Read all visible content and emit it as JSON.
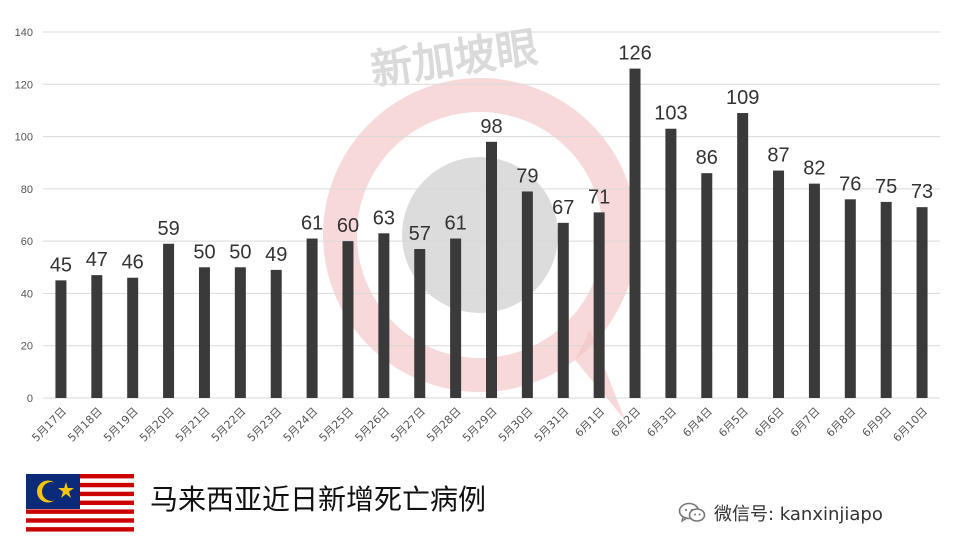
{
  "chart_data": {
    "type": "bar",
    "categories": [
      "5月17日",
      "5月18日",
      "5月19日",
      "5月20日",
      "5月21日",
      "5月22日",
      "5月23日",
      "5月24日",
      "5月25日",
      "5月26日",
      "5月27日",
      "5月28日",
      "5月29日",
      "5月30日",
      "5月31日",
      "6月1日",
      "6月2日",
      "6月3日",
      "6月4日",
      "6月5日",
      "6月6日",
      "6月7日",
      "6月8日",
      "6月9日",
      "6月10日"
    ],
    "values": [
      45,
      47,
      46,
      59,
      50,
      50,
      49,
      61,
      60,
      63,
      57,
      61,
      98,
      79,
      67,
      71,
      126,
      103,
      86,
      109,
      87,
      82,
      76,
      75,
      73
    ],
    "ylim": [
      0,
      140
    ],
    "yticks": [
      0,
      20,
      40,
      60,
      80,
      100,
      120,
      140
    ],
    "grid": true,
    "bar_color": "#3a3a3a"
  },
  "footer": {
    "title": "马来西亚近日新增死亡病例",
    "wechat": "微信号: kanxinjiapo",
    "flag_icon": "malaysia-flag-icon"
  },
  "watermark": {
    "text": "新加坡眼",
    "ring_color": "#f3b8b8"
  }
}
